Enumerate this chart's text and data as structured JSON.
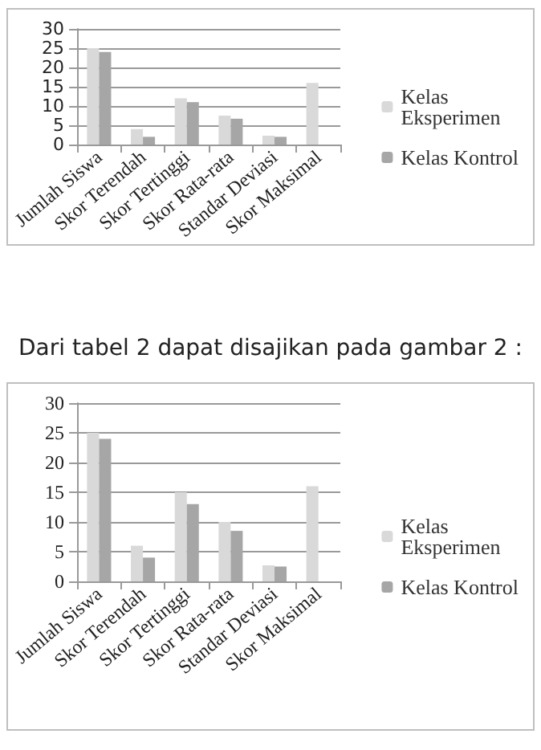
{
  "chart_data": [
    {
      "type": "bar",
      "categories": [
        "Jumlah Siswa",
        "Skor Terendah",
        "Skor Tertinggi",
        "Skor Rata-rata",
        "Standar Deviasi",
        "Skor Maksimal"
      ],
      "series": [
        {
          "name": "Kelas Eksperimen",
          "color": "#d9d9d9",
          "values": [
            25,
            4,
            12,
            7.5,
            2.3,
            16
          ]
        },
        {
          "name": "Kelas Kontrol",
          "color": "#a6a6a6",
          "values": [
            24,
            2,
            11,
            6.7,
            2,
            null
          ]
        }
      ],
      "ylim": [
        0,
        30
      ],
      "yticks": [
        0,
        5,
        10,
        15,
        20,
        25,
        30
      ],
      "grid": "y",
      "legend": "right"
    },
    {
      "type": "bar",
      "title": "Dari tabel 2 dapat disajikan pada gambar 2 :",
      "categories": [
        "Jumlah Siswa",
        "Skor Terendah",
        "Skor Tertinggi",
        "Skor Rata-rata",
        "Standar Deviasi",
        "Skor Maksimal"
      ],
      "series": [
        {
          "name": "Kelas Eksperimen",
          "color": "#d9d9d9",
          "values": [
            25,
            6,
            15,
            10,
            2.7,
            16
          ]
        },
        {
          "name": "Kelas Kontrol",
          "color": "#a6a6a6",
          "values": [
            24,
            4,
            13,
            8.5,
            2.5,
            null
          ]
        }
      ],
      "ylim": [
        0,
        30
      ],
      "yticks": [
        0,
        5,
        10,
        15,
        20,
        25,
        30
      ],
      "grid": "y",
      "legend": "right"
    }
  ]
}
